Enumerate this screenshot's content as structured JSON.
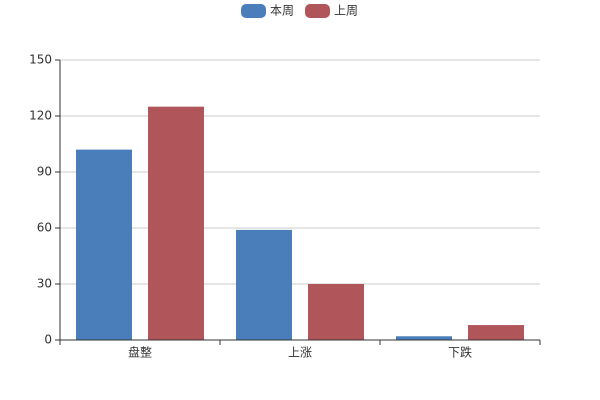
{
  "chart_data": {
    "type": "bar",
    "categories": [
      "盘整",
      "上涨",
      "下跌"
    ],
    "series": [
      {
        "name": "本周",
        "color": "#4a7ebb",
        "values": [
          102,
          59,
          2
        ]
      },
      {
        "name": "上周",
        "color": "#b0555a",
        "values": [
          125,
          30,
          8
        ]
      }
    ],
    "ylim": [
      0,
      150
    ],
    "yticks": [
      0,
      30,
      60,
      90,
      120,
      150
    ],
    "grid": true,
    "legend": "top"
  }
}
